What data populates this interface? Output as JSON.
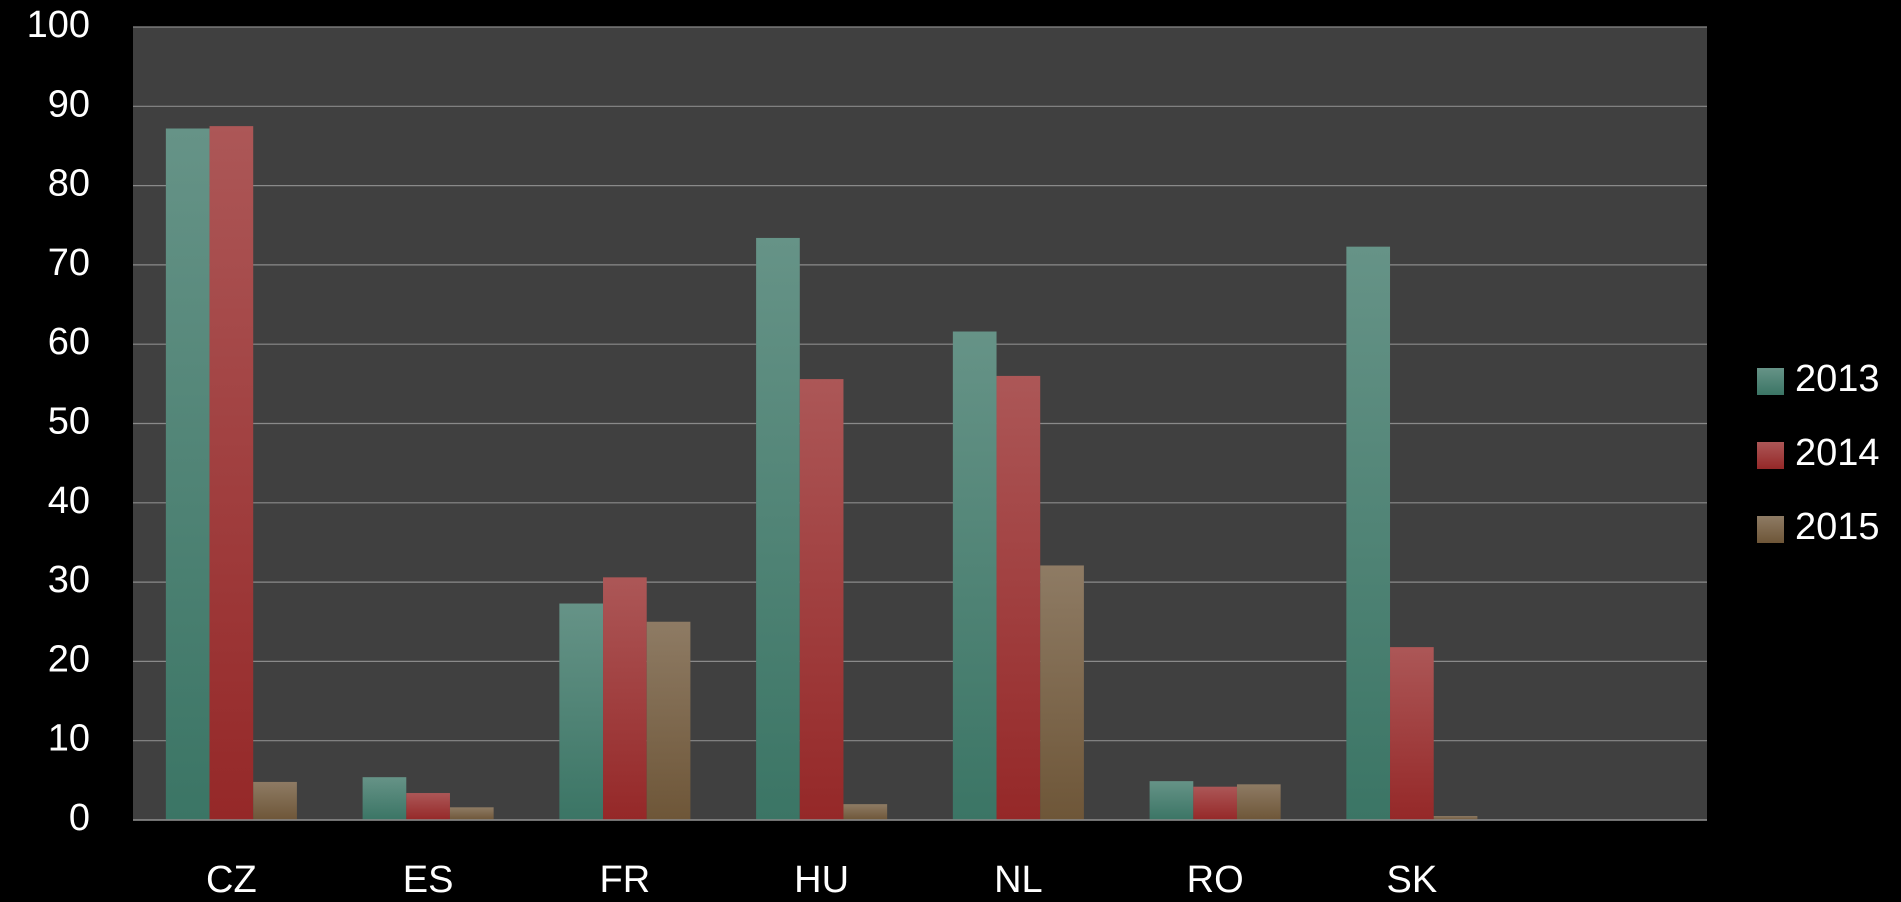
{
  "chart_data": {
    "type": "bar",
    "categories": [
      "CZ",
      "ES",
      "FR",
      "HU",
      "NL",
      "RO",
      "SK",
      null
    ],
    "series": [
      {
        "name": "2013",
        "color": "#3b7565",
        "values": [
          87.2,
          5.4,
          27.3,
          73.4,
          61.6,
          4.9,
          72.3,
          null
        ]
      },
      {
        "name": "2014",
        "color": "#952828",
        "values": [
          87.5,
          3.4,
          30.6,
          55.6,
          56.0,
          4.2,
          21.8,
          null
        ]
      },
      {
        "name": "2015",
        "color": "#6e5638",
        "values": [
          4.8,
          1.6,
          25.0,
          2.0,
          32.1,
          4.5,
          0.5,
          null
        ]
      }
    ],
    "ylim": [
      0,
      100
    ],
    "yticks": [
      0,
      10,
      20,
      30,
      40,
      50,
      60,
      70,
      80,
      90,
      100
    ],
    "grid": true,
    "legend": "right"
  }
}
